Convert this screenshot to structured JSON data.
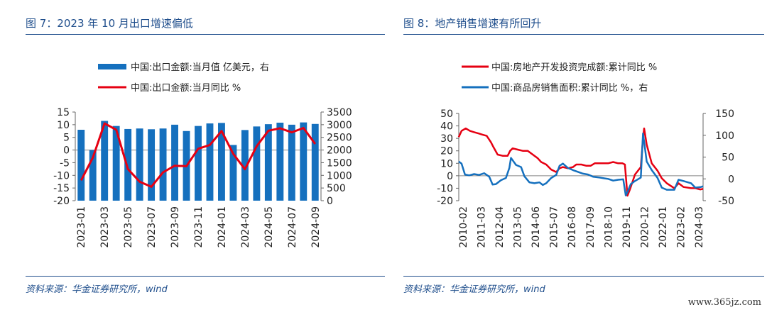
{
  "charts": [
    {
      "title": "图 7：2023 年 10 月出口增速偏低",
      "source": "资料来源：华金证券研究所，wind",
      "chart_data": {
        "type": "bar+line",
        "categories": [
          "2023-01",
          "2023-02",
          "2023-03",
          "2023-04",
          "2023-05",
          "2023-06",
          "2023-07",
          "2023-08",
          "2023-09",
          "2023-10",
          "2023-11",
          "2023-12",
          "2024-01",
          "2024-02",
          "2024-03",
          "2024-04",
          "2024-05",
          "2024-06",
          "2024-07",
          "2024-08",
          "2024-09"
        ],
        "x_tick_labels": [
          "2023-01",
          "2023-03",
          "2023-05",
          "2023-07",
          "2023-09",
          "2023-11",
          "2024-01",
          "2024-03",
          "2024-05",
          "2024-07",
          "2024-09"
        ],
        "y_left": {
          "min": -20,
          "max": 15,
          "ticks": [
            -20,
            -15,
            -10,
            -5,
            0,
            5,
            10,
            15
          ]
        },
        "y_right": {
          "min": 0,
          "max": 3500,
          "ticks": [
            0,
            500,
            1000,
            1500,
            2000,
            2500,
            3000,
            3500
          ]
        },
        "series": [
          {
            "name": "中国:出口金额:当月值 亿美元，右",
            "kind": "bar",
            "axis": "right",
            "color": "#1570be",
            "values": [
              2800,
              2000,
              3150,
              2950,
              2830,
              2850,
              2820,
              2850,
              3000,
              2750,
              2950,
              3050,
              3070,
              2200,
              2790,
              2930,
              3020,
              3080,
              3000,
              3090,
              3030
            ]
          },
          {
            "name": "中国:出口金额:当月同比 %",
            "kind": "line",
            "axis": "left",
            "color": "#e60012",
            "values": [
              -12,
              -3,
              10.5,
              8,
              -7.5,
              -12.5,
              -14.5,
              -8.8,
              -6.2,
              -6.4,
              0.5,
              2,
              7.5,
              -1.5,
              -7.6,
              1.5,
              7.6,
              8.6,
              7,
              8.7,
              2.4
            ]
          }
        ]
      }
    },
    {
      "title": "图 8：地产销售增速有所回升",
      "source": "资料来源：华金证券研究所，wind",
      "chart_data": {
        "type": "line",
        "x_tick_labels": [
          "2010-02",
          "2011-03",
          "2012-04",
          "2013-05",
          "2014-06",
          "2015-07",
          "2016-08",
          "2017-09",
          "2018-10",
          "2019-11",
          "2020-12",
          "2022-01",
          "2023-02",
          "2024-03"
        ],
        "x_range": [
          2010.083,
          2024.667
        ],
        "y_left": {
          "min": -20,
          "max": 50,
          "ticks": [
            -20,
            -10,
            0,
            10,
            20,
            30,
            40,
            50
          ]
        },
        "y_right": {
          "min": -50,
          "max": 150,
          "ticks": [
            -50,
            0,
            50,
            100,
            150
          ]
        },
        "series": [
          {
            "name": "中国:房地产开发投资完成额:累计同比 %",
            "axis": "left",
            "color": "#e60012",
            "x": [
              2010.08,
              2010.25,
              2010.5,
              2010.75,
              2011.0,
              2011.25,
              2011.5,
              2011.75,
              2012.0,
              2012.15,
              2012.4,
              2012.7,
              2013.0,
              2013.15,
              2013.3,
              2013.6,
              2013.9,
              2014.2,
              2014.5,
              2014.8,
              2015.0,
              2015.3,
              2015.6,
              2015.9,
              2016.1,
              2016.3,
              2016.6,
              2016.9,
              2017.1,
              2017.4,
              2017.7,
              2017.95,
              2018.2,
              2018.5,
              2018.8,
              2019.0,
              2019.3,
              2019.6,
              2019.85,
              2020.0,
              2020.15,
              2020.3,
              2020.6,
              2020.95,
              2021.08,
              2021.15,
              2021.3,
              2021.6,
              2021.95,
              2022.2,
              2022.5,
              2022.95,
              2023.2,
              2023.5,
              2023.95,
              2024.2,
              2024.5,
              2024.67
            ],
            "y": [
              31,
              36,
              38,
              36,
              35,
              34,
              33,
              32,
              27,
              23,
              17,
              16,
              16,
              20,
              22,
              21,
              20,
              20,
              17,
              14,
              11,
              9,
              5,
              3,
              6,
              7,
              6,
              7,
              9,
              9,
              8,
              8,
              10,
              10,
              10,
              10,
              11,
              10,
              10,
              9,
              -16,
              -11,
              1,
              7,
              30,
              38,
              25,
              10,
              4,
              -2,
              -6,
              -10,
              -6,
              -9,
              -10,
              -10,
              -11,
              -10.5
            ]
          },
          {
            "name": "中国:商品房销售面积:累计同比 %，右",
            "axis": "right",
            "color": "#1570be",
            "x": [
              2010.08,
              2010.25,
              2010.45,
              2010.7,
              2011.0,
              2011.3,
              2011.6,
              2011.9,
              2012.1,
              2012.3,
              2012.6,
              2012.9,
              2013.1,
              2013.2,
              2013.5,
              2013.8,
              2014.0,
              2014.3,
              2014.6,
              2014.9,
              2015.1,
              2015.3,
              2015.6,
              2015.9,
              2016.1,
              2016.3,
              2016.6,
              2016.9,
              2017.2,
              2017.5,
              2017.8,
              2018.1,
              2018.5,
              2018.8,
              2019.0,
              2019.3,
              2019.6,
              2019.9,
              2020.05,
              2020.15,
              2020.35,
              2020.6,
              2020.95,
              2021.08,
              2021.15,
              2021.3,
              2021.6,
              2021.95,
              2022.2,
              2022.5,
              2022.95,
              2023.2,
              2023.5,
              2023.95,
              2024.2,
              2024.5,
              2024.67
            ],
            "y": [
              40,
              35,
              10,
              8,
              11,
              9,
              13,
              5,
              -13,
              -12,
              -3,
              2,
              25,
              48,
              32,
              27,
              6,
              -8,
              -10,
              -8,
              -14,
              -10,
              2,
              9,
              30,
              35,
              25,
              20,
              16,
              12,
              10,
              5,
              3,
              1,
              0,
              -4,
              -2,
              -1,
              -38,
              -30,
              -12,
              -5,
              3,
              104,
              85,
              40,
              20,
              2,
              -20,
              -25,
              -25,
              -2,
              -5,
              -10,
              -20,
              -19,
              -17
            ]
          }
        ]
      }
    }
  ],
  "watermark": "www.365jz.com"
}
